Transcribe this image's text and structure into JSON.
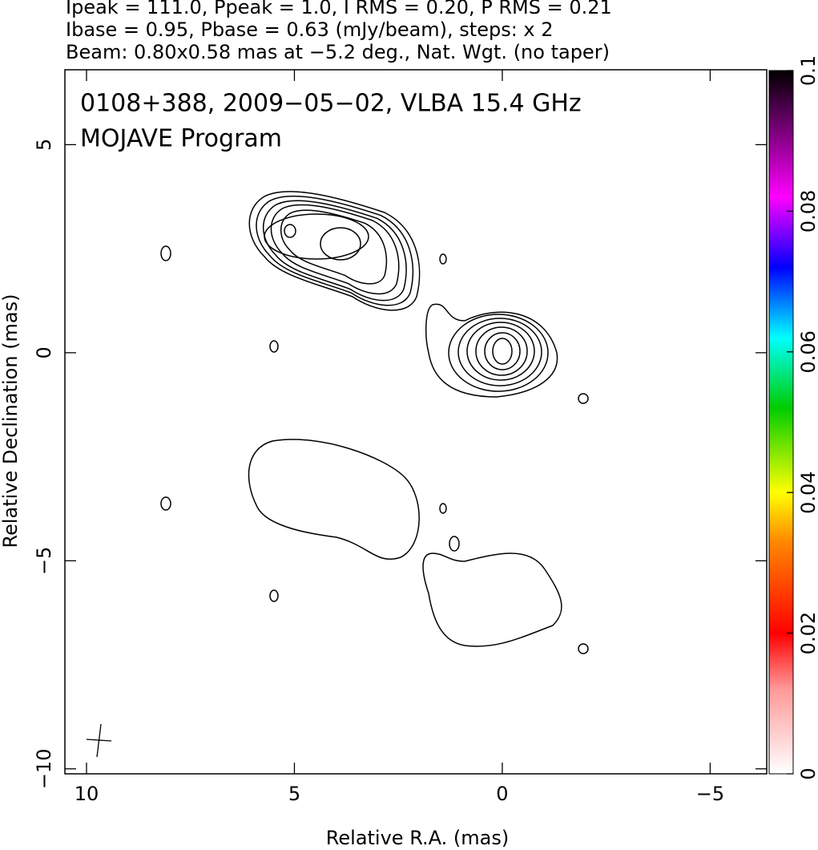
{
  "chart_data": {
    "type": "contour",
    "header": [
      "Ipeak = 111.0, Ppeak = 1.0, I RMS = 0.20, P RMS = 0.21",
      "Ibase = 0.95, Pbase = 0.63 (mJy/beam), steps: x 2",
      "Beam: 0.80x0.58 mas at −5.2 deg., Nat. Wgt. (no taper)"
    ],
    "title": "0108+388, 2009−05−02, VLBA 15.4 GHz",
    "subtitle": "MOJAVE Program",
    "x_label": "Relative R.A. (mas)",
    "y_label": "Relative Declination (mas)",
    "xlim": [
      10.52,
      -6.36
    ],
    "ylim": [
      -10.12,
      6.8
    ],
    "xticks": [
      10,
      5,
      0,
      {
        "value": -5,
        "label": "−5"
      }
    ],
    "yticks": [
      {
        "value": -10,
        "label": "−10"
      },
      {
        "value": -5,
        "label": "−5"
      },
      0,
      5
    ],
    "colorbar_lim": [
      0,
      0.1
    ],
    "colorbar_ticks": [
      0,
      0.02,
      0.04,
      0.06,
      0.08,
      0.1
    ]
  }
}
